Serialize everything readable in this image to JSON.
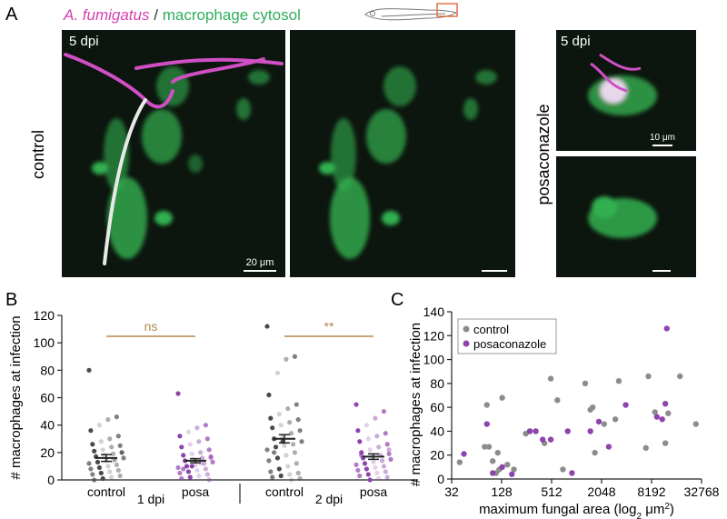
{
  "figure": {
    "panel_a": {
      "letter": "A",
      "species": "A. fumigatus",
      "separator": "/",
      "reporter": "macrophage cytosol",
      "stage_left": "5 dpi",
      "row_label": "control",
      "stage_right": "5 dpi",
      "treatment_label": "posaconazole",
      "scale_left": "20 μm",
      "scale_right": "10 μm"
    },
    "panel_b_letter": "B",
    "panel_c_letter": "C"
  },
  "chart_data": [
    {
      "type": "strip",
      "y_label": "# macrophages at infection",
      "ylim": [
        0,
        120
      ],
      "yticks": [
        0,
        20,
        40,
        60,
        80,
        100,
        120
      ],
      "timepoints": [
        "1 dpi",
        "2 dpi"
      ],
      "comparisons": [
        "ns",
        "**"
      ],
      "comparison_color": "#b5874f",
      "groups": [
        {
          "label": "control",
          "color": "#4a4a4a",
          "mean": 16,
          "sem": 2.5,
          "values": [
            80,
            46,
            44,
            40,
            36,
            32,
            30,
            28,
            26,
            25,
            24,
            22,
            21,
            20,
            19,
            18,
            17,
            16,
            15,
            14,
            13,
            12,
            11,
            10,
            9,
            8,
            7,
            6,
            5,
            4,
            3,
            2,
            1,
            0,
            20,
            14
          ]
        },
        {
          "label": "posa",
          "color": "#8e44ad",
          "mean": 14,
          "sem": 1.5,
          "values": [
            63,
            40,
            38,
            35,
            32,
            30,
            28,
            26,
            24,
            22,
            20,
            19,
            18,
            17,
            16,
            15,
            14,
            13,
            12,
            11,
            10,
            9,
            8,
            7,
            6,
            5,
            4,
            3,
            2,
            1,
            0,
            12,
            10,
            8,
            16
          ]
        },
        {
          "label": "control",
          "color": "#4a4a4a",
          "mean": 30,
          "sem": 3,
          "values": [
            112,
            90,
            88,
            78,
            62,
            55,
            52,
            48,
            45,
            44,
            42,
            40,
            38,
            36,
            34,
            32,
            30,
            28,
            26,
            25,
            24,
            22,
            20,
            18,
            16,
            14,
            12,
            10,
            8,
            6,
            5,
            4,
            3,
            2,
            1,
            0,
            28,
            20
          ]
        },
        {
          "label": "posa",
          "color": "#8e44ad",
          "mean": 17,
          "sem": 2,
          "values": [
            55,
            50,
            45,
            40,
            36,
            34,
            32,
            30,
            28,
            26,
            24,
            22,
            20,
            19,
            18,
            17,
            16,
            15,
            14,
            13,
            12,
            11,
            10,
            9,
            8,
            7,
            6,
            5,
            4,
            3,
            2,
            1,
            0,
            18,
            22
          ]
        }
      ]
    },
    {
      "type": "scatter",
      "y_label": "# macrophages at infection",
      "x_label": [
        "maximum fungal area (log",
        "2",
        " μm",
        "2",
        ")"
      ],
      "log_base_x": 2,
      "xlim": [
        32,
        32768
      ],
      "xticks": [
        32,
        128,
        512,
        2048,
        8192,
        32768
      ],
      "ylim": [
        0,
        140
      ],
      "yticks": [
        0,
        20,
        40,
        60,
        80,
        100,
        120,
        140
      ],
      "legend": "top-left",
      "series": [
        {
          "name": "control",
          "color": "#8c8c8c",
          "x": [
            40,
            80,
            85,
            90,
            100,
            110,
            115,
            120,
            130,
            150,
            180,
            250,
            280,
            420,
            500,
            600,
            700,
            1300,
            1500,
            1600,
            1700,
            2200,
            3000,
            3300,
            7000,
            7500,
            9000,
            12000,
            13000,
            18000,
            28000
          ],
          "y": [
            14,
            27,
            62,
            27,
            15,
            5,
            22,
            8,
            68,
            12,
            8,
            38,
            40,
            30,
            84,
            66,
            8,
            80,
            58,
            60,
            22,
            46,
            50,
            82,
            26,
            86,
            56,
            30,
            55,
            86,
            46
          ]
        },
        {
          "name": "posaconazole",
          "color": "#8e44ad",
          "x": [
            45,
            85,
            100,
            130,
            170,
            280,
            330,
            400,
            500,
            800,
            900,
            1500,
            1900,
            2500,
            4000,
            9500,
            11000,
            12000,
            12500
          ],
          "y": [
            21,
            46,
            5,
            10,
            4,
            40,
            40,
            33,
            33,
            40,
            5,
            40,
            48,
            27,
            62,
            52,
            50,
            63,
            126
          ]
        }
      ]
    }
  ]
}
